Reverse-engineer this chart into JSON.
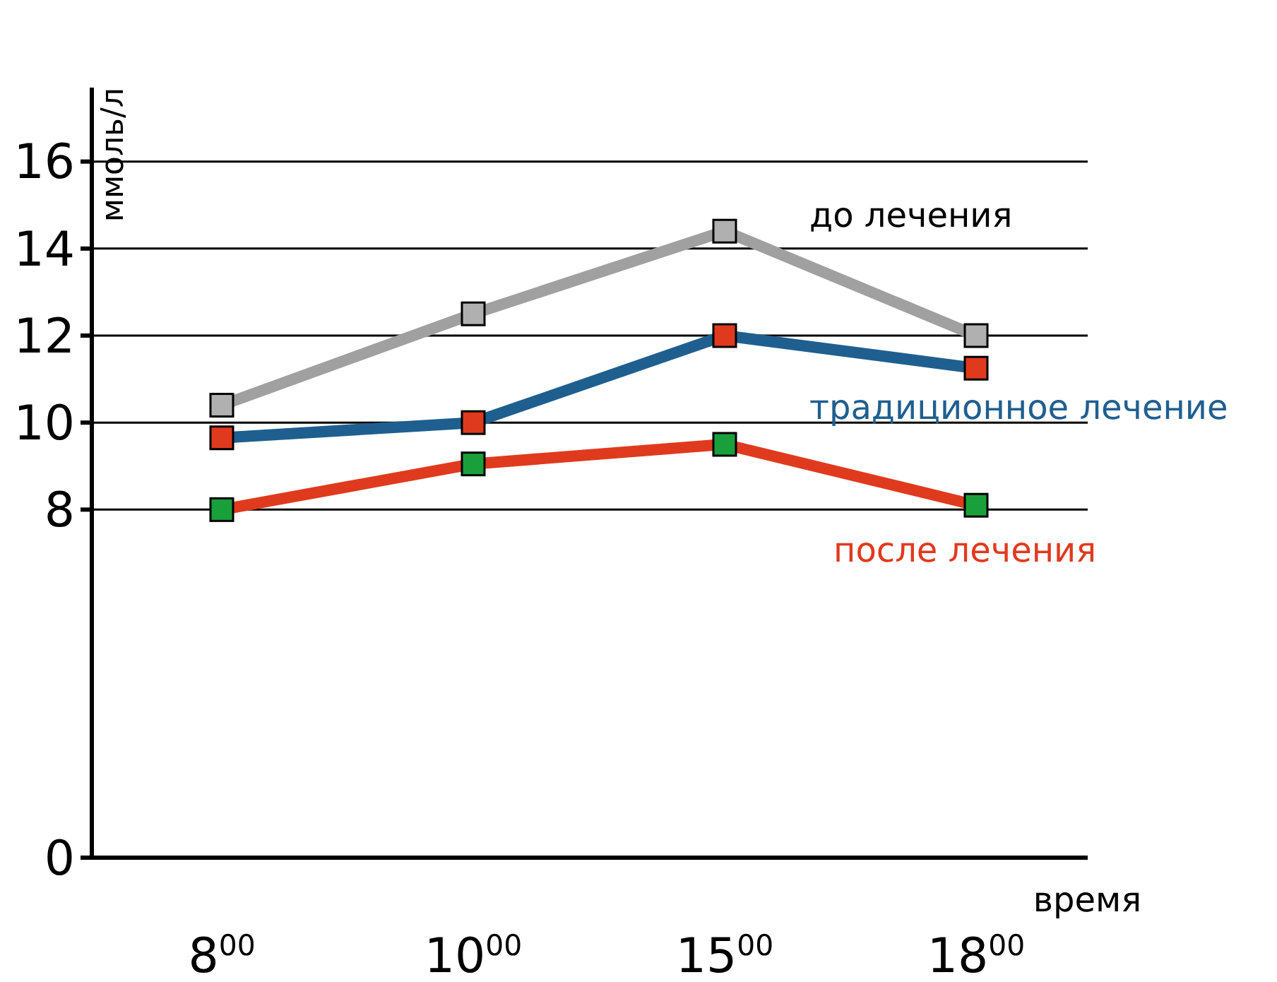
{
  "chart_data": {
    "type": "line",
    "ylabel": "ммоль/л",
    "xlabel": "время",
    "categories": [
      "8$^{00}$",
      "10$^{00}$",
      "15$^{00}$",
      "18$^{00}$"
    ],
    "series": [
      {
        "name": "до лечения",
        "color": "#a0a0a0",
        "colors": [
          "#b0b0b0",
          "#b0b0b0",
          "#b0b0b0",
          "#b0b0b0"
        ],
        "values": [
          10.4,
          12.5,
          14.4,
          12.0
        ]
      },
      {
        "name": "традиционное лечение",
        "color": "#1f5f8f",
        "colors": [
          "#e03a1e",
          "#e03a1e",
          "#e03a1e",
          "#e03a1e"
        ],
        "values": [
          9.65,
          10.0,
          12.0,
          11.25
        ]
      },
      {
        "name": "после лечения",
        "color": "#e03a1e",
        "colors": [
          "#1aa03a",
          "#1aa03a",
          "#1aa03a",
          "#1aa03a"
        ],
        "values": [
          8.0,
          9.05,
          9.5,
          8.1
        ]
      }
    ],
    "ylim": [
      0,
      17.7
    ],
    "yticks": [
      0,
      8,
      10,
      12,
      14,
      16
    ],
    "grid": "y",
    "marker": "square",
    "line_style": "solid"
  }
}
